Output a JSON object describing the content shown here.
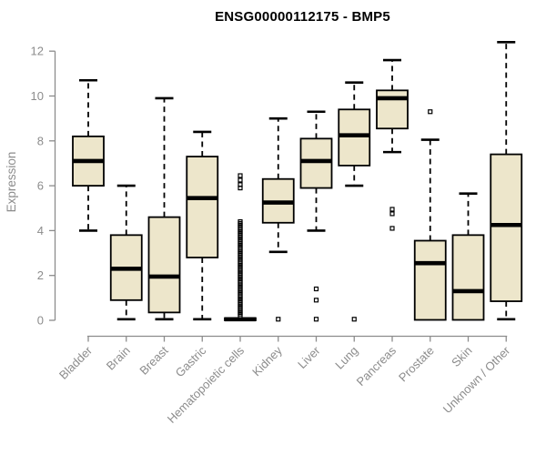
{
  "title": "ENSG00000112175 - BMP5",
  "chart_data": {
    "type": "boxplot",
    "title": "ENSG00000112175 - BMP5",
    "xlabel": "",
    "ylabel": "Expression",
    "ylim": [
      0,
      12.5
    ],
    "yticks": [
      0,
      2,
      4,
      6,
      8,
      10,
      12
    ],
    "grid": false,
    "legend": false,
    "categories": [
      "Bladder",
      "Brain",
      "Breast",
      "Gastric",
      "Hematopoietic cells",
      "Kidney",
      "Liver",
      "Lung",
      "Pancreas",
      "Prostate",
      "Skin",
      "Unknown / Other"
    ],
    "series": [
      {
        "name": "Bladder",
        "low": 4.0,
        "q1": 6.0,
        "median": 7.1,
        "q3": 8.2,
        "high": 10.7,
        "outliers": []
      },
      {
        "name": "Brain",
        "low": 0.05,
        "q1": 0.9,
        "median": 2.3,
        "q3": 3.8,
        "high": 6.0,
        "outliers": []
      },
      {
        "name": "Breast",
        "low": 0.05,
        "q1": 0.35,
        "median": 1.95,
        "q3": 4.6,
        "high": 9.9,
        "outliers": []
      },
      {
        "name": "Gastric",
        "low": 0.05,
        "q1": 2.8,
        "median": 5.45,
        "q3": 7.3,
        "high": 8.4,
        "outliers": []
      },
      {
        "name": "Hematopoietic cells",
        "low": 0,
        "q1": 0,
        "median": 0.05,
        "q3": 0.1,
        "high": 0.1,
        "outliers": [
          6.45,
          6.25,
          6.05,
          5.9,
          4.4,
          4.32,
          4.25,
          4.18,
          4.1,
          4.02,
          3.95,
          3.88,
          3.8,
          3.72,
          3.65,
          3.58,
          3.5,
          3.42,
          3.35,
          3.28,
          3.2,
          3.12,
          3.05,
          2.98,
          2.9,
          2.82,
          2.75,
          2.68,
          2.6,
          2.52,
          2.45,
          2.38,
          2.3,
          2.22,
          2.15,
          2.08,
          2.0,
          1.92,
          1.85,
          1.78,
          1.7,
          1.62,
          1.55,
          1.48,
          1.4,
          1.32,
          1.25,
          1.18,
          1.1,
          1.02,
          0.95,
          0.88,
          0.8,
          0.72,
          0.65,
          0.58,
          0.5,
          0.42,
          0.35,
          0.28,
          0.2
        ]
      },
      {
        "name": "Kidney",
        "low": 3.05,
        "q1": 4.35,
        "median": 5.25,
        "q3": 6.3,
        "high": 9.0,
        "outliers": [
          0.05
        ]
      },
      {
        "name": "Liver",
        "low": 4.0,
        "q1": 5.9,
        "median": 7.1,
        "q3": 8.1,
        "high": 9.3,
        "outliers": [
          1.4,
          0.9,
          0.05
        ]
      },
      {
        "name": "Lung",
        "low": 6.0,
        "q1": 6.9,
        "median": 8.25,
        "q3": 9.4,
        "high": 10.6,
        "outliers": [
          0.05
        ]
      },
      {
        "name": "Pancreas",
        "low": 7.5,
        "q1": 8.55,
        "median": 9.9,
        "q3": 10.25,
        "high": 11.6,
        "outliers": [
          4.95,
          4.75,
          4.1
        ]
      },
      {
        "name": "Prostate",
        "low": 0.02,
        "q1": 0.02,
        "median": 2.55,
        "q3": 3.55,
        "high": 8.05,
        "outliers": [
          9.3
        ]
      },
      {
        "name": "Skin",
        "low": 0.02,
        "q1": 0.02,
        "median": 1.3,
        "q3": 3.8,
        "high": 5.65,
        "outliers": []
      },
      {
        "name": "Unknown / Other",
        "low": 0.05,
        "q1": 0.85,
        "median": 4.25,
        "q3": 7.4,
        "high": 12.4,
        "outliers": []
      }
    ],
    "colors": {
      "box_fill": "#EDE6CB",
      "box_stroke": "#000000",
      "median": "#000000",
      "whisker": "#000000",
      "axis": "#8C8C8C",
      "tick_label": "#8C8C8C",
      "title": "#000000",
      "background": "#FFFFFF"
    }
  }
}
